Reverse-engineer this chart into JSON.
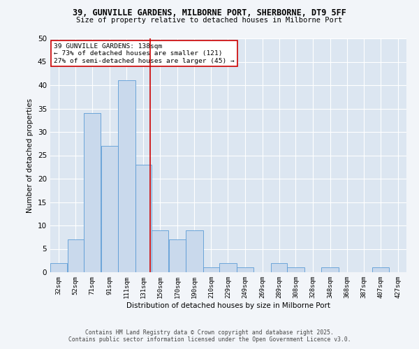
{
  "title": "39, GUNVILLE GARDENS, MILBORNE PORT, SHERBORNE, DT9 5FF",
  "subtitle": "Size of property relative to detached houses in Milborne Port",
  "xlabel": "Distribution of detached houses by size in Milborne Port",
  "ylabel": "Number of detached properties",
  "bar_color": "#c9d9ec",
  "bar_edge_color": "#5b9bd5",
  "background_color": "#dce6f1",
  "grid_color": "#ffffff",
  "fig_background": "#f2f5f9",
  "vline_x": 138,
  "vline_color": "#cc0000",
  "categories": [
    "32sqm",
    "52sqm",
    "71sqm",
    "91sqm",
    "111sqm",
    "131sqm",
    "150sqm",
    "170sqm",
    "190sqm",
    "210sqm",
    "229sqm",
    "249sqm",
    "269sqm",
    "289sqm",
    "308sqm",
    "328sqm",
    "348sqm",
    "368sqm",
    "387sqm",
    "407sqm",
    "427sqm"
  ],
  "bin_edges": [
    22,
    42,
    61,
    81,
    101,
    121,
    140,
    160,
    180,
    200,
    219,
    239,
    259,
    279,
    298,
    318,
    338,
    358,
    377,
    397,
    417,
    437
  ],
  "values": [
    2,
    7,
    34,
    27,
    41,
    23,
    9,
    7,
    9,
    1,
    2,
    1,
    0,
    2,
    1,
    0,
    1,
    0,
    0,
    1,
    0
  ],
  "ylim": [
    0,
    50
  ],
  "yticks": [
    0,
    5,
    10,
    15,
    20,
    25,
    30,
    35,
    40,
    45,
    50
  ],
  "annotation_title": "39 GUNVILLE GARDENS: 138sqm",
  "annotation_line1": "← 73% of detached houses are smaller (121)",
  "annotation_line2": "27% of semi-detached houses are larger (45) →",
  "footer1": "Contains HM Land Registry data © Crown copyright and database right 2025.",
  "footer2": "Contains public sector information licensed under the Open Government Licence v3.0."
}
